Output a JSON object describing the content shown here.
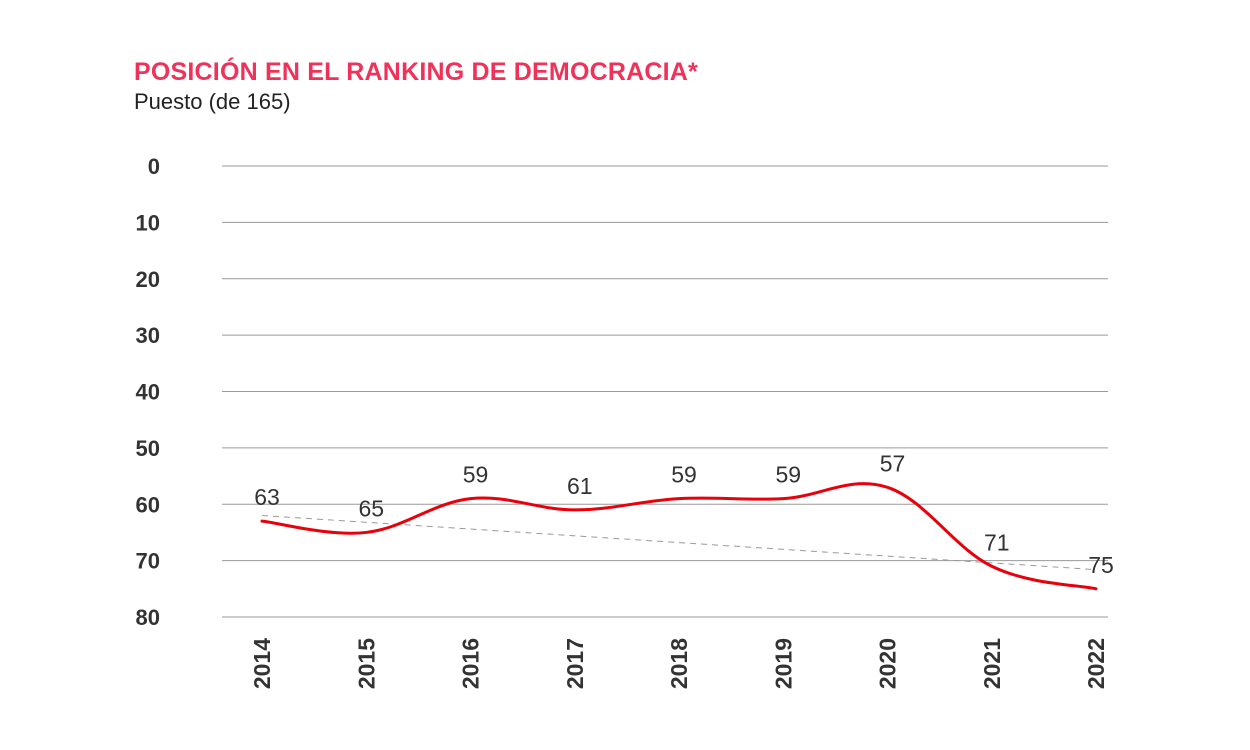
{
  "chart_data": {
    "type": "line",
    "title": "POSICIÓN EN EL RANKING DE DEMOCRACIA*",
    "subtitle": "Puesto (de 165)",
    "categories": [
      "2014",
      "2015",
      "2016",
      "2017",
      "2018",
      "2019",
      "2020",
      "2021",
      "2022"
    ],
    "series": [
      {
        "values": [
          63,
          65,
          59,
          61,
          59,
          59,
          57,
          71,
          75
        ],
        "color": "#e8000b",
        "style": "solid"
      },
      {
        "values": [
          62,
          63.2,
          64.4,
          65.6,
          66.8,
          68,
          69.2,
          70.4,
          71.6
        ],
        "color": "#999999",
        "style": "dashed-trend"
      }
    ],
    "data_labels": [
      "63",
      "65",
      "59",
      "61",
      "59",
      "59",
      "57",
      "71",
      "75"
    ],
    "y_ticks": [
      "0",
      "10",
      "20",
      "30",
      "40",
      "50",
      "60",
      "70",
      "80"
    ],
    "ylim": [
      0,
      80
    ],
    "y_inverted": true,
    "grid": true,
    "xlabel": "",
    "ylabel": ""
  }
}
